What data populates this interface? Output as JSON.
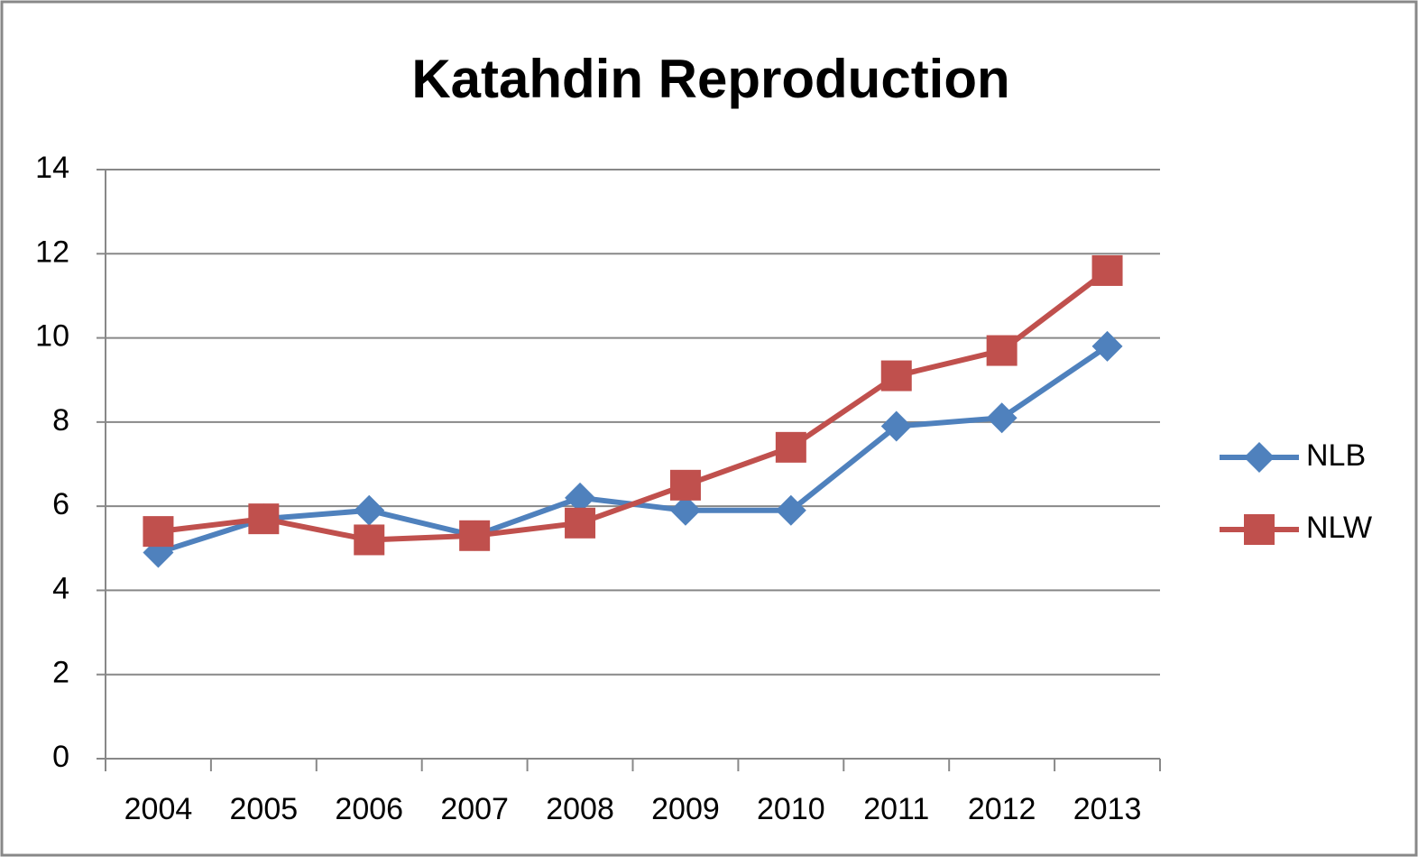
{
  "chart_data": {
    "type": "line",
    "title": "Katahdin Reproduction",
    "categories": [
      "2004",
      "2005",
      "2006",
      "2007",
      "2008",
      "2009",
      "2010",
      "2011",
      "2012",
      "2013"
    ],
    "series": [
      {
        "name": "NLB",
        "color": "#4f81bd",
        "marker": "diamond",
        "values": [
          4.9,
          5.7,
          5.9,
          5.3,
          6.2,
          5.9,
          5.9,
          7.9,
          8.1,
          9.8
        ]
      },
      {
        "name": "NLW",
        "color": "#c0504d",
        "marker": "square",
        "values": [
          5.4,
          5.7,
          5.2,
          5.3,
          5.6,
          6.5,
          7.4,
          9.1,
          9.7,
          11.6
        ]
      }
    ],
    "ylim": [
      0,
      14
    ],
    "yticks": [
      0,
      2,
      4,
      6,
      8,
      10,
      12,
      14
    ],
    "grid": true,
    "legend": "right"
  }
}
